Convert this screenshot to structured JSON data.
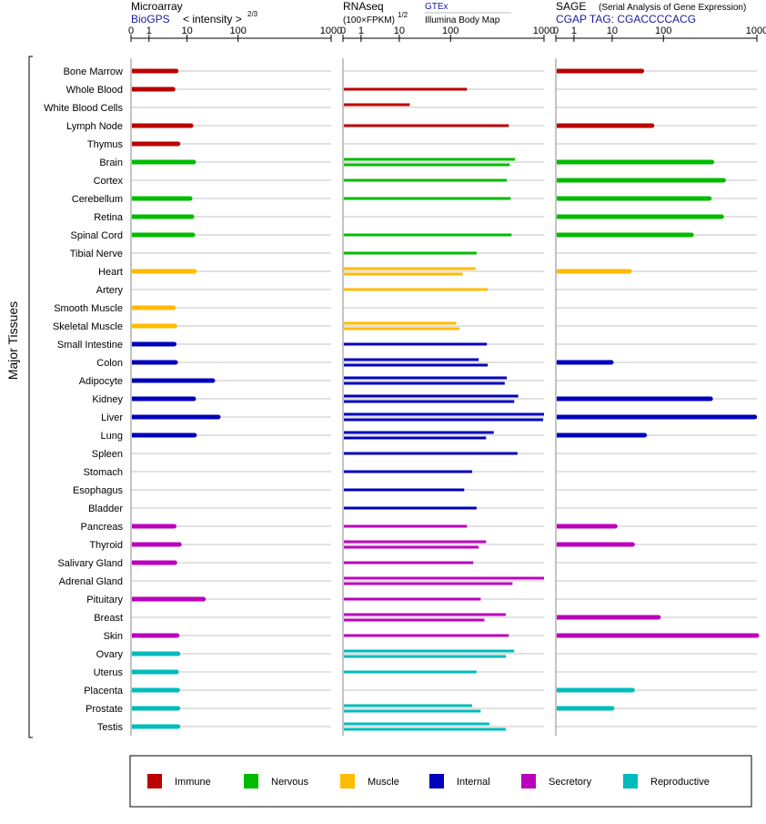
{
  "chart_data": {
    "type": "bar",
    "y_axis_title": "Major Tissues",
    "tissues": [
      "Bone Marrow",
      "Whole Blood",
      "White Blood Cells",
      "Lymph Node",
      "Thymus",
      "Brain",
      "Cortex",
      "Cerebellum",
      "Retina",
      "Spinal Cord",
      "Tibial Nerve",
      "Heart",
      "Artery",
      "Smooth Muscle",
      "Skeletal Muscle",
      "Small Intestine",
      "Colon",
      "Adipocyte",
      "Kidney",
      "Liver",
      "Lung",
      "Spleen",
      "Stomach",
      "Esophagus",
      "Bladder",
      "Pancreas",
      "Thyroid",
      "Salivary Gland",
      "Adrenal Gland",
      "Pituitary",
      "Breast",
      "Skin",
      "Ovary",
      "Uterus",
      "Placenta",
      "Prostate",
      "Testis"
    ],
    "tissue_groups": [
      "Immune",
      "Immune",
      "Immune",
      "Immune",
      "Immune",
      "Nervous",
      "Nervous",
      "Nervous",
      "Nervous",
      "Nervous",
      "Nervous",
      "Muscle",
      "Muscle",
      "Muscle",
      "Muscle",
      "Internal",
      "Internal",
      "Internal",
      "Internal",
      "Internal",
      "Internal",
      "Internal",
      "Internal",
      "Internal",
      "Internal",
      "Secretory",
      "Secretory",
      "Secretory",
      "Secretory",
      "Secretory",
      "Secretory",
      "Secretory",
      "Reproductive",
      "Reproductive",
      "Reproductive",
      "Reproductive",
      "Reproductive"
    ],
    "group_colors": {
      "Immune": "#bb0000",
      "Nervous": "#00bb00",
      "Muscle": "#ffbb00",
      "Internal": "#0000bb",
      "Secretory": "#bb00bb",
      "Reproductive": "#00bbbb"
    },
    "legend": [
      {
        "label": "Immune",
        "color": "#bb0000"
      },
      {
        "label": "Nervous",
        "color": "#00bb00"
      },
      {
        "label": "Muscle",
        "color": "#ffbb00"
      },
      {
        "label": "Internal",
        "color": "#0000bb"
      },
      {
        "label": "Secretory",
        "color": "#bb00bb"
      },
      {
        "label": "Reproductive",
        "color": "#00bbbb"
      }
    ],
    "axis_ticks": [
      "0",
      "1",
      "10",
      "100",
      "1000"
    ],
    "axis_tick_values": [
      0,
      1,
      10,
      100,
      1000
    ],
    "xlim": [
      0,
      1000
    ],
    "panels": [
      {
        "title": "Microarray",
        "subtitle": "BioGPS",
        "scale_note": "< intensity >",
        "scale_exponent": "2/3",
        "x_scale": "power 2/3",
        "series": [
          {
            "values": [
              5.2,
              4.3,
              null,
              12,
              5.8,
              13.5,
              null,
              11.5,
              12.5,
              13,
              null,
              14,
              null,
              4.4,
              4.8,
              4.6,
              5,
              32,
              13.5,
              41,
              14,
              null,
              null,
              null,
              null,
              4.6,
              6.3,
              4.8,
              null,
              21,
              null,
              5.5,
              5.8,
              5.3,
              5.7,
              5.8,
              5.8
            ]
          }
        ]
      },
      {
        "title": "RNAseq",
        "subtitle": "(100×FPKM)",
        "scale_exponent": "1/2",
        "sources": [
          "GTEx",
          "Illumina Body Map"
        ],
        "x_scale": "power 1/2",
        "series": [
          {
            "name": "GTEx",
            "values": [
              null,
              null,
              null,
              null,
              null,
              null,
              null,
              null,
              null,
              null,
              null,
              null,
              null,
              null,
              null,
              null,
              null,
              null,
              null,
              null,
              null,
              null,
              null,
              null,
              null,
              null,
              null,
              null,
              null,
              null,
              null,
              null,
              null,
              null,
              null,
              null,
              null
            ]
          },
          {
            "name": "Illumina Body Map",
            "values": [
              null,
              null,
              null,
              null,
              null,
              null,
              null,
              null,
              null,
              null,
              null,
              null,
              null,
              null,
              null,
              null,
              null,
              null,
              null,
              null,
              null,
              null,
              null,
              null,
              null,
              null,
              null,
              null,
              null,
              null,
              null,
              null,
              null,
              null,
              null,
              null,
              null
            ]
          }
        ],
        "bars": [
          {
            "values": [
              null,
              145,
              null,
              null,
              null,
              450,
              null,
              null,
              null,
              null,
              null,
              null,
              null,
              null,
              null,
              null,
              null,
              null,
              null,
              null,
              null,
              null,
              null,
              null,
              null,
              null,
              null,
              null,
              null,
              null,
              null,
              null,
              null,
              null,
              null,
              null,
              null
            ],
            "_": ""
          }
        ]
      },
      {
        "title": "SAGE",
        "title_note": "(Serial Analysis of Gene Expression)",
        "subtitle": "CGAP TAG: CGACCCCACG",
        "x_scale": "power 2/3",
        "series": [
          {
            "values": [
              38,
              null,
              null,
              60,
              null,
              330,
              440,
              310,
              420,
              200,
              null,
              22,
              null,
              null,
              null,
              null,
              9.5,
              null,
              320,
              950,
              43,
              null,
              null,
              null,
              null,
              11.5,
              25,
              null,
              null,
              null,
              80,
              1000,
              null,
              null,
              25,
              10,
              null
            ]
          }
        ]
      }
    ],
    "rnaseq_values": {
      "gtex": [
        null,
        null,
        null,
        null,
        null,
        480,
        null,
        null,
        null,
        null,
        null,
        null,
        null,
        null,
        null,
        null,
        null,
        null,
        null,
        null,
        null,
        null,
        null,
        null,
        null,
        null,
        null,
        null,
        null,
        null,
        null,
        null,
        null,
        null,
        null,
        null,
        null
      ],
      "ibm": [
        null,
        null,
        null,
        null,
        null,
        null,
        null,
        null,
        null,
        null,
        null,
        null,
        null,
        null,
        null,
        null,
        null,
        null,
        null,
        null,
        null,
        null,
        null,
        null,
        null,
        null,
        null,
        null,
        null,
        null,
        null,
        null,
        null,
        null,
        null,
        null,
        null
      ]
    },
    "rnaseq_rows": [
      {
        "a": null,
        "b": null
      },
      {
        "a": null,
        "b": 150
      },
      {
        "a": 16,
        "b": null
      },
      {
        "a": null,
        "b": 420
      },
      {
        "a": null,
        "b": null
      },
      {
        "a": 490,
        "b": 430
      },
      {
        "a": null,
        "b": 400
      },
      {
        "a": null,
        "b": 440
      },
      {
        "a": null,
        "b": null
      },
      {
        "a": null,
        "b": 450
      },
      {
        "a": null,
        "b": 190
      },
      {
        "a": 185,
        "b": 135
      },
      {
        "a": null,
        "b": 250
      },
      {
        "a": null,
        "b": null
      },
      {
        "a": 115,
        "b": 125
      },
      {
        "a": null,
        "b": 245
      },
      {
        "a": 200,
        "b": 250
      },
      {
        "a": 400,
        "b": 380
      },
      {
        "a": 530,
        "b": 480
      },
      {
        "a": 1050,
        "b": 980
      },
      {
        "a": 290,
        "b": 240
      },
      {
        "a": null,
        "b": 520
      },
      {
        "a": null,
        "b": 170
      },
      {
        "a": null,
        "b": 140
      },
      {
        "a": null,
        "b": 190
      },
      {
        "a": null,
        "b": 150
      },
      {
        "a": 240,
        "b": 200
      },
      {
        "a": null,
        "b": 175
      },
      {
        "a": 1050,
        "b": 460
      },
      {
        "a": null,
        "b": 210
      },
      {
        "a": 390,
        "b": 230
      },
      {
        "a": null,
        "b": 420
      },
      {
        "a": 480,
        "b": 390
      },
      {
        "a": null,
        "b": 190
      },
      {
        "a": null,
        "b": null
      },
      {
        "a": 170,
        "b": 210
      },
      {
        "a": 260,
        "b": 390
      }
    ]
  }
}
